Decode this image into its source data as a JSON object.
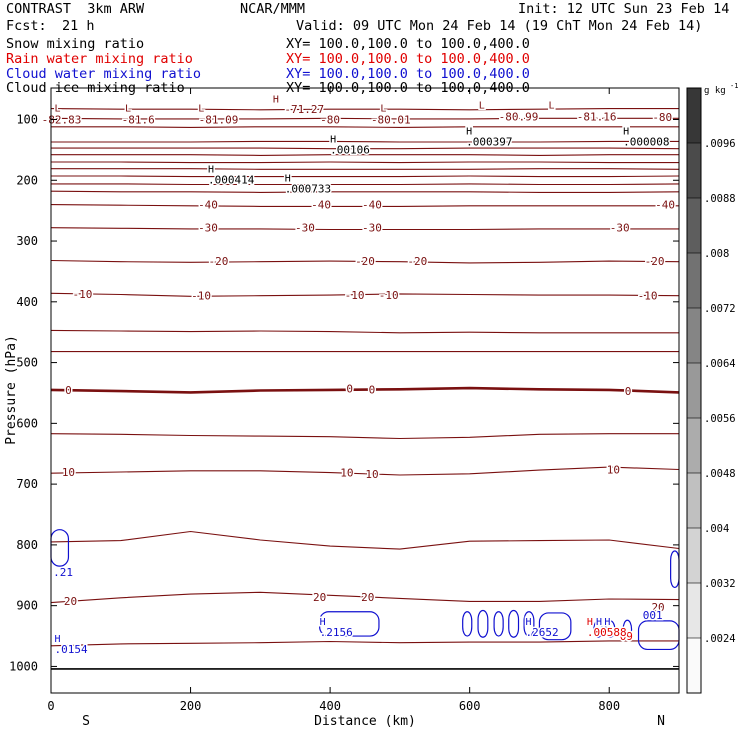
{
  "header": {
    "model": "CONTRAST  3km ARW",
    "org": "NCAR/MMM",
    "init": "Init: 12 UTC Sun 23 Feb 14",
    "fcst_label": "Fcst:",
    "fcst_value": "21 h",
    "valid": "Valid: 09 UTC Mon 24 Feb 14 (19 ChT Mon 24 Feb 14)",
    "fields": [
      {
        "name": "Snow mixing ratio",
        "xy": "XY= 100.0,100.0 to 100.0,400.0",
        "color": "#000000"
      },
      {
        "name": "Rain water mixing ratio",
        "xy": "XY= 100.0,100.0 to 100.0,400.0",
        "color": "#e00000"
      },
      {
        "name": "Cloud water mixing ratio",
        "xy": "XY= 100.0,100.0 to 100.0,400.0",
        "color": "#1010d0"
      },
      {
        "name": "Cloud ice mixing ratio",
        "xy": "XY= 100.0,100.0 to 100.0,400.0",
        "color": "#000000"
      }
    ]
  },
  "chart_data": {
    "type": "line",
    "subtype": "vertical cross-section contour plot",
    "xlabel": "Distance (km)",
    "ylabel": "Pressure (hPa)",
    "xlim": [
      0,
      900
    ],
    "ylim": [
      1045,
      45
    ],
    "x_ticks": [
      "0",
      "200",
      "400",
      "600",
      "800"
    ],
    "x_tick_values": [
      0,
      200,
      400,
      600,
      800
    ],
    "y_ticks": [
      "100",
      "200",
      "300",
      "400",
      "500",
      "600",
      "700",
      "800",
      "900",
      "1000"
    ],
    "y_tick_values": [
      100,
      200,
      300,
      400,
      500,
      600,
      700,
      800,
      900,
      1000
    ],
    "endpoint_labels": {
      "left": "S",
      "right": "N"
    },
    "colorbar": {
      "unit": "g kg",
      "unit_exp": "-1",
      "labels": [
        ".0096",
        ".0088",
        ".008",
        ".0072",
        ".0064",
        ".0056",
        ".0048",
        ".004",
        ".0032",
        ".0024"
      ],
      "levels": [
        0.0096,
        0.0088,
        0.008,
        0.0072,
        0.0064,
        0.0056,
        0.0048,
        0.004,
        0.0032,
        0.0024
      ]
    },
    "temperature_contours": [
      {
        "p": [
          82,
          83,
          83,
          84,
          83,
          83,
          84,
          83,
          82,
          82
        ]
      },
      {
        "p": [
          98,
          99,
          99,
          99,
          98,
          99,
          99,
          98,
          98,
          98
        ]
      },
      {
        "p": [
          112,
          112,
          113,
          112,
          112,
          113,
          112,
          112,
          112,
          112
        ]
      },
      {
        "p": [
          137,
          137,
          137,
          136,
          136,
          137,
          137,
          137,
          136,
          136
        ]
      },
      {
        "p": [
          147,
          147,
          147,
          147,
          148,
          148,
          147,
          147,
          147,
          148
        ]
      },
      {
        "p": [
          158,
          158,
          158,
          159,
          158,
          158,
          158,
          159,
          158,
          158
        ]
      },
      {
        "p": [
          170,
          170,
          171,
          171,
          170,
          171,
          170,
          170,
          171,
          171
        ]
      },
      {
        "p": [
          181,
          181,
          181,
          182,
          182,
          182,
          182,
          181,
          181,
          182
        ]
      },
      {
        "p": [
          193,
          193,
          194,
          194,
          194,
          194,
          193,
          194,
          194,
          193
        ]
      },
      {
        "p": [
          206,
          206,
          207,
          207,
          207,
          207,
          206,
          207,
          207,
          206
        ]
      },
      {
        "p": [
          218,
          219,
          219,
          220,
          219,
          219,
          219,
          220,
          220,
          219
        ]
      },
      {
        "p": [
          240,
          241,
          242,
          243,
          243,
          243,
          242,
          242,
          242,
          242
        ],
        "label": "-40"
      },
      {
        "p": [
          278,
          279,
          280,
          280,
          281,
          281,
          281,
          280,
          280,
          280
        ],
        "label": "-30"
      },
      {
        "p": [
          332,
          334,
          335,
          334,
          333,
          334,
          336,
          335,
          333,
          334
        ],
        "label": "-20"
      },
      {
        "p": [
          386,
          388,
          391,
          390,
          389,
          387,
          388,
          389,
          389,
          390
        ],
        "label": "-10"
      },
      {
        "p": [
          447,
          448,
          449,
          448,
          449,
          451,
          450,
          451,
          451,
          451
        ]
      },
      {
        "p": [
          482,
          482,
          482,
          482,
          482,
          482,
          482,
          482,
          482,
          482
        ]
      },
      {
        "p": [
          545,
          547,
          549,
          546,
          545,
          544,
          542,
          544,
          545,
          549
        ],
        "label": "0",
        "bold": true
      },
      {
        "p": [
          617,
          618,
          620,
          621,
          622,
          625,
          623,
          618,
          617,
          617
        ]
      },
      {
        "p": [
          682,
          680,
          678,
          678,
          681,
          685,
          683,
          677,
          672,
          676
        ],
        "label": "10"
      },
      {
        "p": [
          795,
          793,
          778,
          792,
          802,
          807,
          794,
          793,
          792,
          806
        ]
      },
      {
        "p": [
          895,
          887,
          881,
          878,
          883,
          888,
          893,
          893,
          889,
          890
        ],
        "label": "20"
      },
      {
        "p": [
          966,
          963,
          962,
          961,
          959,
          961,
          960,
          960,
          958,
          958
        ]
      },
      {
        "p": [
          1004,
          1004,
          1004,
          1004,
          1004,
          1004,
          1004,
          1004,
          1004,
          1004
        ],
        "ground": true
      }
    ],
    "temperature_labels": [
      {
        "x": 15,
        "p": 100,
        "text": "-82.83"
      },
      {
        "x": 125,
        "p": 100,
        "text": "-81.6"
      },
      {
        "x": 240,
        "p": 100,
        "text": "-81.09"
      },
      {
        "x": 400,
        "p": 100,
        "text": "-80"
      },
      {
        "x": 487,
        "p": 100,
        "text": "-80.01"
      },
      {
        "x": 363,
        "p": 83,
        "text": "-71.27"
      },
      {
        "x": 670,
        "p": 95,
        "text": "-80.99"
      },
      {
        "x": 782,
        "p": 95,
        "text": "-81.16"
      },
      {
        "x": 876,
        "p": 96,
        "text": "-80"
      },
      {
        "x": 225,
        "p": 240,
        "text": "-40"
      },
      {
        "x": 387,
        "p": 240,
        "text": "-40"
      },
      {
        "x": 460,
        "p": 240,
        "text": "-40"
      },
      {
        "x": 880,
        "p": 240,
        "text": "-40"
      },
      {
        "x": 225,
        "p": 278,
        "text": "-30"
      },
      {
        "x": 364,
        "p": 278,
        "text": "-30"
      },
      {
        "x": 460,
        "p": 278,
        "text": "-30"
      },
      {
        "x": 815,
        "p": 278,
        "text": "-30"
      },
      {
        "x": 240,
        "p": 333,
        "text": "-20"
      },
      {
        "x": 450,
        "p": 333,
        "text": "-20"
      },
      {
        "x": 525,
        "p": 333,
        "text": "-20"
      },
      {
        "x": 865,
        "p": 333,
        "text": "-20"
      },
      {
        "x": 45,
        "p": 387,
        "text": "-10"
      },
      {
        "x": 215,
        "p": 390,
        "text": "-10"
      },
      {
        "x": 435,
        "p": 389,
        "text": "-10"
      },
      {
        "x": 484,
        "p": 389,
        "text": "-10"
      },
      {
        "x": 855,
        "p": 390,
        "text": "-10"
      },
      {
        "x": 25,
        "p": 545,
        "text": "0"
      },
      {
        "x": 428,
        "p": 543,
        "text": "0"
      },
      {
        "x": 460,
        "p": 544,
        "text": "0"
      },
      {
        "x": 827,
        "p": 547,
        "text": "0"
      },
      {
        "x": 25,
        "p": 680,
        "text": "10"
      },
      {
        "x": 424,
        "p": 681,
        "text": "10"
      },
      {
        "x": 460,
        "p": 683,
        "text": "10"
      },
      {
        "x": 806,
        "p": 676,
        "text": "10"
      },
      {
        "x": 28,
        "p": 892,
        "text": "20"
      },
      {
        "x": 385,
        "p": 886,
        "text": "20"
      },
      {
        "x": 454,
        "p": 886,
        "text": "20"
      },
      {
        "x": 870,
        "p": 902,
        "text": "20"
      }
    ],
    "cloud_water_contours": [
      {
        "x": [
          0,
          25
        ],
        "p": [
          775,
          835
        ]
      },
      {
        "x": [
          385,
          470
        ],
        "p": [
          910,
          950
        ]
      },
      {
        "x": [
          590,
          603
        ],
        "p": [
          910,
          950
        ]
      },
      {
        "x": [
          612,
          626
        ],
        "p": [
          908,
          952
        ]
      },
      {
        "x": [
          635,
          648
        ],
        "p": [
          910,
          950
        ]
      },
      {
        "x": [
          656,
          670
        ],
        "p": [
          908,
          952
        ]
      },
      {
        "x": [
          678,
          692
        ],
        "p": [
          910,
          950
        ]
      },
      {
        "x": [
          700,
          745
        ],
        "p": [
          912,
          956
        ]
      },
      {
        "x": [
          778,
          790
        ],
        "p": [
          925,
          952
        ]
      },
      {
        "x": [
          795,
          808
        ],
        "p": [
          925,
          952
        ]
      },
      {
        "x": [
          820,
          832
        ],
        "p": [
          924,
          954
        ]
      },
      {
        "x": [
          842,
          900
        ],
        "p": [
          925,
          972
        ]
      },
      {
        "x": [
          888,
          900
        ],
        "p": [
          810,
          870
        ]
      }
    ],
    "extrema": [
      {
        "kind": "L",
        "x": 5,
        "p": 87,
        "value": "",
        "color": "#7a1010"
      },
      {
        "kind": "L",
        "x": 106,
        "p": 87,
        "value": "",
        "color": "#7a1010"
      },
      {
        "kind": "L",
        "x": 211,
        "p": 87,
        "value": "",
        "color": "#7a1010"
      },
      {
        "kind": "H",
        "x": 318,
        "p": 72,
        "value": "",
        "color": "#7a1010"
      },
      {
        "kind": "L",
        "x": 472,
        "p": 87,
        "value": "",
        "color": "#7a1010"
      },
      {
        "kind": "L",
        "x": 613,
        "p": 82,
        "value": "",
        "color": "#7a1010"
      },
      {
        "kind": "L",
        "x": 713,
        "p": 82,
        "value": "",
        "color": "#7a1010"
      },
      {
        "kind": "H",
        "x": 400,
        "p": 138,
        "value": ".00106",
        "color": "#000000"
      },
      {
        "kind": "H",
        "x": 595,
        "p": 125,
        "value": ".000397",
        "color": "#000000"
      },
      {
        "kind": "H",
        "x": 820,
        "p": 125,
        "value": ".000008",
        "color": "#000000"
      },
      {
        "kind": "H",
        "x": 225,
        "p": 187,
        "value": ".000414",
        "color": "#000000"
      },
      {
        "kind": "H",
        "x": 335,
        "p": 202,
        "value": ".000733",
        "color": "#000000"
      },
      {
        "kind": "H",
        "x": 5,
        "p": 960,
        "value": ".0154",
        "color": "#1010d0"
      },
      {
        "kind": "H",
        "x": 385,
        "p": 932,
        "value": ".2156",
        "color": "#1010d0"
      },
      {
        "kind": "H",
        "x": 680,
        "p": 932,
        "value": ".2652",
        "color": "#1010d0"
      },
      {
        "kind": "H",
        "x": 768,
        "p": 932,
        "value": ".00588",
        "color": "#e00000"
      },
      {
        "kind": "H",
        "x": 781,
        "p": 932,
        "value": "",
        "color": "#1010d0"
      },
      {
        "kind": "H",
        "x": 793,
        "p": 932,
        "value": "",
        "color": "#1010d0"
      }
    ],
    "loose_labels": [
      {
        "x": 3,
        "p": 845,
        "text": ".21",
        "color": "#1010d0"
      },
      {
        "x": 815,
        "p": 950,
        "text": "09",
        "color": "#e00000"
      },
      {
        "x": 848,
        "p": 915,
        "text": "001",
        "color": "#1010d0"
      }
    ]
  }
}
